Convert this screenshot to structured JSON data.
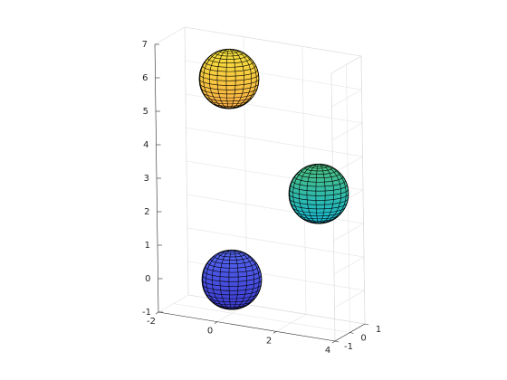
{
  "chart_data": {
    "type": "sphere3d",
    "series": [
      {
        "center": [
          0,
          0,
          0
        ],
        "radius": 1,
        "colors": [
          "#5566f2",
          "#3c3cd0"
        ]
      },
      {
        "center": [
          3,
          0,
          3
        ],
        "radius": 1,
        "colors": [
          "#4cbf7e",
          "#18b7d2"
        ]
      },
      {
        "center": [
          0,
          0,
          6
        ],
        "radius": 1,
        "colors": [
          "#f4e33c",
          "#fbae45"
        ]
      }
    ],
    "xlim": [
      -2,
      4
    ],
    "xticks": [
      -2,
      0,
      2,
      4
    ],
    "ylim": [
      -1,
      1
    ],
    "yticks": [
      -1,
      0,
      1
    ],
    "zlim": [
      -1,
      7
    ],
    "zticks": [
      -1,
      0,
      1,
      2,
      3,
      4,
      5,
      6,
      7
    ],
    "grid": true
  }
}
